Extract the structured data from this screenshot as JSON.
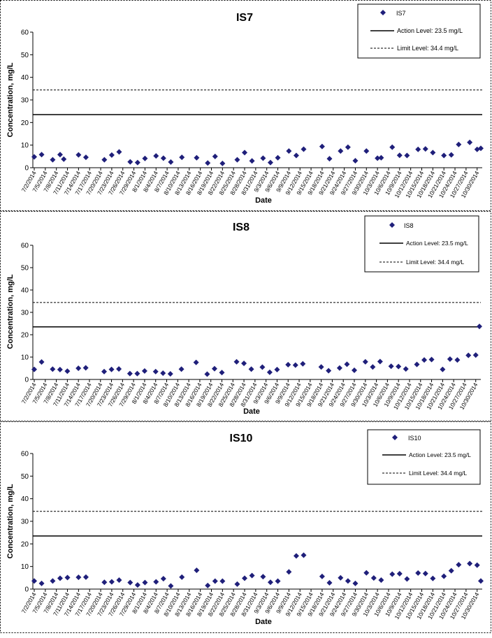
{
  "charts": [
    {
      "title": "IS7",
      "ylabel": "Concentration, mg/L",
      "xlabel": "Date",
      "legend": {
        "series": "IS7",
        "action": "Action Level: 23.5 mg/L",
        "limit": "Limit Level: 34.4 mg/L"
      }
    },
    {
      "title": "IS8",
      "ylabel": "Concentration, mg/L",
      "xlabel": "Date",
      "legend": {
        "series": "IS8",
        "action": "Action Level: 23.5 mg/L",
        "limit": "Limit Level: 34.4 mg/L"
      }
    },
    {
      "title": "IS10",
      "ylabel": "Concentration, mg/L",
      "xlabel": "Date",
      "legend": {
        "series": "IS10",
        "action": "Action Level: 23.5 mg/L",
        "limit": "Limit Level: 34.4 mg/L"
      }
    }
  ],
  "colors": {
    "marker": "#1f1f7a",
    "line": "#000000",
    "border": "#000000"
  },
  "chart_data": [
    {
      "type": "scatter",
      "title": "IS7",
      "xlabel": "Date",
      "ylabel": "Concentration, mg/L",
      "ylim": [
        0,
        60
      ],
      "yticks": [
        0,
        10,
        20,
        30,
        40,
        50,
        60
      ],
      "xlim": [
        "7/2/2014",
        "10/31/2014"
      ],
      "x_tick_labels": [
        "7/2/2014",
        "7/5/2014",
        "7/8/2014",
        "7/11/2014",
        "7/14/2014",
        "7/17/2014",
        "7/20/2014",
        "7/23/2014",
        "7/26/2014",
        "7/29/2014",
        "8/1/2014",
        "8/4/2014",
        "8/7/2014",
        "8/10/2014",
        "8/13/2014",
        "8/16/2014",
        "8/19/2014",
        "8/22/2014",
        "8/25/2014",
        "8/28/2014",
        "8/31/2014",
        "9/3/2014",
        "9/6/2014",
        "9/9/2014",
        "9/12/2014",
        "9/15/2014",
        "9/18/2014",
        "9/21/2014",
        "9/24/2014",
        "9/27/2014",
        "9/30/2014",
        "10/3/2014",
        "10/6/2014",
        "10/9/2014",
        "10/12/2014",
        "10/15/2014",
        "10/18/2014",
        "10/21/2014",
        "10/24/2014",
        "10/27/2014",
        "10/30/2014"
      ],
      "legend_position": "top-right",
      "grid": false,
      "series": [
        {
          "name": "IS7",
          "points": [
            [
              "7/2/2014",
              4.8
            ],
            [
              "7/4/2014",
              5.8
            ],
            [
              "7/7/2014",
              3.5
            ],
            [
              "7/9/2014",
              5.8
            ],
            [
              "7/10/2014",
              3.8
            ],
            [
              "7/14/2014",
              5.7
            ],
            [
              "7/16/2014",
              4.6
            ],
            [
              "7/21/2014",
              3.5
            ],
            [
              "7/23/2014",
              5.6
            ],
            [
              "7/25/2014",
              7.0
            ],
            [
              "7/28/2014",
              2.6
            ],
            [
              "7/30/2014",
              2.3
            ],
            [
              "8/1/2014",
              4.1
            ],
            [
              "8/4/2014",
              5.2
            ],
            [
              "8/6/2014",
              4.2
            ],
            [
              "8/8/2014",
              2.5
            ],
            [
              "8/11/2014",
              4.6
            ],
            [
              "8/15/2014",
              4.4
            ],
            [
              "8/18/2014",
              2.1
            ],
            [
              "8/20/2014",
              5.0
            ],
            [
              "8/22/2014",
              1.9
            ],
            [
              "8/26/2014",
              3.5
            ],
            [
              "8/28/2014",
              6.7
            ],
            [
              "8/30/2014",
              3.0
            ],
            [
              "9/2/2014",
              4.2
            ],
            [
              "9/4/2014",
              2.3
            ],
            [
              "9/6/2014",
              4.4
            ],
            [
              "9/9/2014",
              7.4
            ],
            [
              "9/11/2014",
              5.4
            ],
            [
              "9/13/2014",
              8.2
            ],
            [
              "9/18/2014",
              9.4
            ],
            [
              "9/20/2014",
              4.0
            ],
            [
              "9/23/2014",
              7.4
            ],
            [
              "9/25/2014",
              9.1
            ],
            [
              "9/27/2014",
              3.1
            ],
            [
              "9/30/2014",
              7.4
            ],
            [
              "10/3/2014",
              4.2
            ],
            [
              "10/4/2014",
              4.4
            ],
            [
              "10/7/2014",
              9.1
            ],
            [
              "10/9/2014",
              5.5
            ],
            [
              "10/11/2014",
              5.4
            ],
            [
              "10/14/2014",
              8.1
            ],
            [
              "10/16/2014",
              8.3
            ],
            [
              "10/18/2014",
              6.7
            ],
            [
              "10/21/2014",
              5.4
            ],
            [
              "10/23/2014",
              5.7
            ],
            [
              "10/25/2014",
              10.3
            ],
            [
              "10/28/2014",
              11.2
            ],
            [
              "10/30/2014",
              8.1
            ],
            [
              "10/31/2014",
              8.6
            ]
          ]
        },
        {
          "name": "Action Level: 23.5 mg/L",
          "style": "solid",
          "value": 23.5
        },
        {
          "name": "Limit Level: 34.4 mg/L",
          "style": "dashed",
          "value": 34.4
        }
      ]
    },
    {
      "type": "scatter",
      "title": "IS8",
      "xlabel": "Date",
      "ylabel": "Concentration, mg/L",
      "ylim": [
        0,
        60
      ],
      "yticks": [
        0,
        10,
        20,
        30,
        40,
        50,
        60
      ],
      "xlim": [
        "7/2/2014",
        "10/31/2014"
      ],
      "x_tick_labels": [
        "7/2/2014",
        "7/5/2014",
        "7/8/2014",
        "7/11/2014",
        "7/14/2014",
        "7/17/2014",
        "7/20/2014",
        "7/23/2014",
        "7/26/2014",
        "7/29/2014",
        "8/1/2014",
        "8/4/2014",
        "8/7/2014",
        "8/10/2014",
        "8/13/2014",
        "8/16/2014",
        "8/19/2014",
        "8/22/2014",
        "8/25/2014",
        "8/28/2014",
        "8/31/2014",
        "9/3/2014",
        "9/6/2014",
        "9/9/2014",
        "9/12/2014",
        "9/15/2014",
        "9/18/2014",
        "9/21/2014",
        "9/24/2014",
        "9/27/2014",
        "9/30/2014",
        "10/3/2014",
        "10/6/2014",
        "10/9/2014",
        "10/12/2014",
        "10/15/2014",
        "10/18/2014",
        "10/21/2014",
        "10/24/2014",
        "10/27/2014",
        "10/30/2014"
      ],
      "legend_position": "top-right",
      "grid": false,
      "series": [
        {
          "name": "IS8",
          "points": [
            [
              "7/2/2014",
              4.5
            ],
            [
              "7/4/2014",
              7.8
            ],
            [
              "7/7/2014",
              4.6
            ],
            [
              "7/9/2014",
              4.4
            ],
            [
              "7/11/2014",
              3.7
            ],
            [
              "7/14/2014",
              5.0
            ],
            [
              "7/16/2014",
              5.2
            ],
            [
              "7/21/2014",
              3.5
            ],
            [
              "7/23/2014",
              4.5
            ],
            [
              "7/25/2014",
              4.7
            ],
            [
              "7/28/2014",
              2.6
            ],
            [
              "7/30/2014",
              2.6
            ],
            [
              "8/1/2014",
              3.8
            ],
            [
              "8/4/2014",
              3.5
            ],
            [
              "8/6/2014",
              2.8
            ],
            [
              "8/8/2014",
              2.5
            ],
            [
              "8/11/2014",
              4.6
            ],
            [
              "8/15/2014",
              7.6
            ],
            [
              "8/18/2014",
              2.4
            ],
            [
              "8/20/2014",
              4.8
            ],
            [
              "8/22/2014",
              3.1
            ],
            [
              "8/26/2014",
              7.9
            ],
            [
              "8/28/2014",
              7.2
            ],
            [
              "8/30/2014",
              4.6
            ],
            [
              "9/2/2014",
              5.5
            ],
            [
              "9/4/2014",
              3.2
            ],
            [
              "9/6/2014",
              4.4
            ],
            [
              "9/9/2014",
              6.6
            ],
            [
              "9/11/2014",
              6.4
            ],
            [
              "9/13/2014",
              7.0
            ],
            [
              "9/18/2014",
              5.6
            ],
            [
              "9/20/2014",
              3.9
            ],
            [
              "9/23/2014",
              5.1
            ],
            [
              "9/25/2014",
              6.8
            ],
            [
              "9/27/2014",
              4.1
            ],
            [
              "9/30/2014",
              7.9
            ],
            [
              "10/2/2014",
              5.6
            ],
            [
              "10/4/2014",
              8.0
            ],
            [
              "10/7/2014",
              5.9
            ],
            [
              "10/9/2014",
              5.8
            ],
            [
              "10/11/2014",
              4.7
            ],
            [
              "10/14/2014",
              6.7
            ],
            [
              "10/16/2014",
              8.7
            ],
            [
              "10/18/2014",
              8.9
            ],
            [
              "10/21/2014",
              4.5
            ],
            [
              "10/23/2014",
              9.1
            ],
            [
              "10/25/2014",
              8.7
            ],
            [
              "10/28/2014",
              10.8
            ],
            [
              "10/30/2014",
              10.9
            ],
            [
              "10/31/2014",
              23.7
            ]
          ]
        },
        {
          "name": "Action Level: 23.5 mg/L",
          "style": "solid",
          "value": 23.5
        },
        {
          "name": "Limit Level: 34.4 mg/L",
          "style": "dashed",
          "value": 34.4
        }
      ]
    },
    {
      "type": "scatter",
      "title": "IS10",
      "xlabel": "Date",
      "ylabel": "Concentration, mg/L",
      "ylim": [
        0,
        60
      ],
      "yticks": [
        0,
        10,
        20,
        30,
        40,
        50,
        60
      ],
      "xlim": [
        "7/2/2014",
        "10/31/2014"
      ],
      "x_tick_labels": [
        "7/2/2014",
        "7/5/2014",
        "7/8/2014",
        "7/11/2014",
        "7/14/2014",
        "7/17/2014",
        "7/20/2014",
        "7/23/2014",
        "7/26/2014",
        "7/29/2014",
        "8/1/2014",
        "8/4/2014",
        "8/7/2014",
        "8/10/2014",
        "8/13/2014",
        "8/16/2014",
        "8/19/2014",
        "8/22/2014",
        "8/25/2014",
        "8/28/2014",
        "8/31/2014",
        "9/3/2014",
        "9/6/2014",
        "9/9/2014",
        "9/12/2014",
        "9/15/2014",
        "9/18/2014",
        "9/21/2014",
        "9/24/2014",
        "9/27/2014",
        "9/30/2014",
        "10/3/2014",
        "10/6/2014",
        "10/9/2014",
        "10/12/2014",
        "10/15/2014",
        "10/18/2014",
        "10/21/2014",
        "10/24/2014",
        "10/27/2014",
        "10/30/2014"
      ],
      "legend_position": "top-right",
      "grid": false,
      "series": [
        {
          "name": "IS10",
          "points": [
            [
              "7/2/2014",
              3.6
            ],
            [
              "7/4/2014",
              2.5
            ],
            [
              "7/7/2014",
              3.6
            ],
            [
              "7/9/2014",
              4.8
            ],
            [
              "7/11/2014",
              5.1
            ],
            [
              "7/14/2014",
              5.2
            ],
            [
              "7/16/2014",
              5.3
            ],
            [
              "7/21/2014",
              3.0
            ],
            [
              "7/23/2014",
              3.2
            ],
            [
              "7/25/2014",
              4.0
            ],
            [
              "7/28/2014",
              2.9
            ],
            [
              "7/30/2014",
              1.8
            ],
            [
              "8/1/2014",
              2.9
            ],
            [
              "8/4/2014",
              3.2
            ],
            [
              "8/6/2014",
              4.6
            ],
            [
              "8/8/2014",
              1.4
            ],
            [
              "8/11/2014",
              5.3
            ],
            [
              "8/15/2014",
              8.3
            ],
            [
              "8/18/2014",
              1.6
            ],
            [
              "8/20/2014",
              3.5
            ],
            [
              "8/22/2014",
              3.5
            ],
            [
              "8/26/2014",
              2.2
            ],
            [
              "8/28/2014",
              4.8
            ],
            [
              "8/30/2014",
              6.0
            ],
            [
              "9/2/2014",
              5.5
            ],
            [
              "9/4/2014",
              3.0
            ],
            [
              "9/6/2014",
              3.5
            ],
            [
              "9/9/2014",
              7.6
            ],
            [
              "9/11/2014",
              14.7
            ],
            [
              "9/13/2014",
              15.0
            ],
            [
              "9/18/2014",
              5.6
            ],
            [
              "9/20/2014",
              2.8
            ],
            [
              "9/23/2014",
              5.0
            ],
            [
              "9/25/2014",
              3.6
            ],
            [
              "9/27/2014",
              2.5
            ],
            [
              "9/30/2014",
              7.2
            ],
            [
              "10/2/2014",
              4.9
            ],
            [
              "10/4/2014",
              4.0
            ],
            [
              "10/7/2014",
              6.6
            ],
            [
              "10/9/2014",
              6.8
            ],
            [
              "10/11/2014",
              4.5
            ],
            [
              "10/14/2014",
              7.1
            ],
            [
              "10/16/2014",
              6.9
            ],
            [
              "10/18/2014",
              4.7
            ],
            [
              "10/21/2014",
              5.7
            ],
            [
              "10/23/2014",
              8.1
            ],
            [
              "10/25/2014",
              10.8
            ],
            [
              "10/28/2014",
              11.3
            ],
            [
              "10/30/2014",
              10.6
            ],
            [
              "10/31/2014",
              3.6
            ]
          ]
        },
        {
          "name": "Action Level: 23.5 mg/L",
          "style": "solid",
          "value": 23.5
        },
        {
          "name": "Limit Level: 34.4 mg/L",
          "style": "dashed",
          "value": 34.4
        }
      ]
    }
  ]
}
